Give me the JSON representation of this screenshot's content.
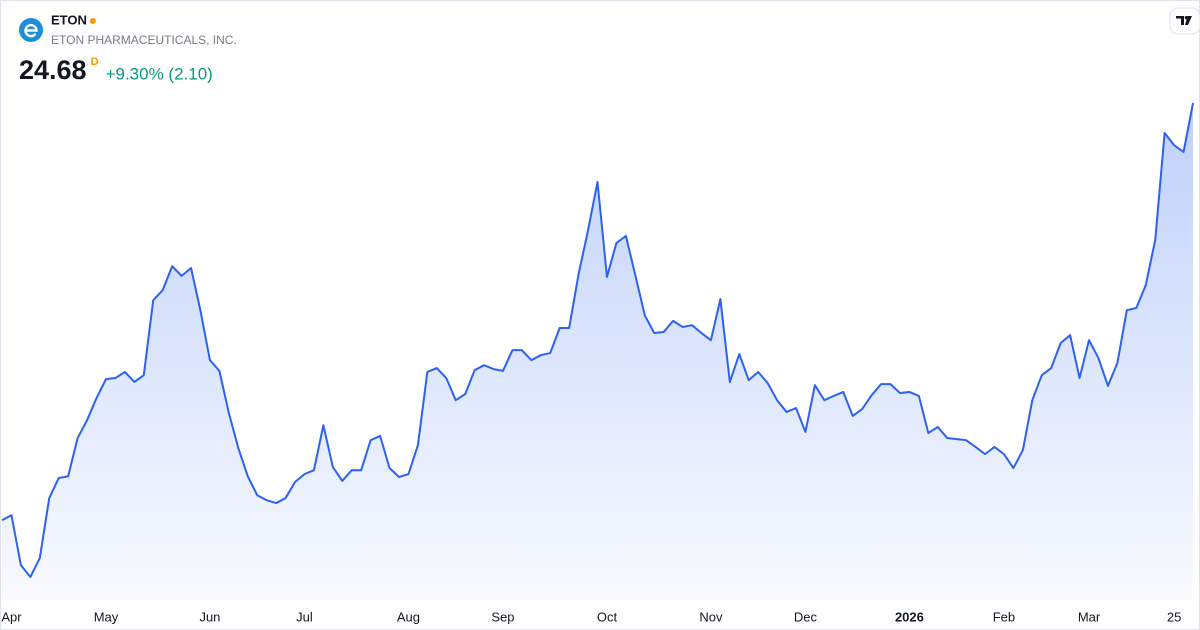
{
  "chart_data": {
    "type": "line",
    "symbol": "ETON",
    "company": "ETON PHARMACEUTICALS, INC.",
    "price": "24.68",
    "interval": "D",
    "change": "+9.30% (2.10)",
    "color": "#2c62f0",
    "categories": [
      null,
      "Apr",
      null,
      null,
      null,
      null,
      null,
      null,
      null,
      null,
      null,
      "May",
      null,
      null,
      null,
      null,
      null,
      null,
      null,
      null,
      null,
      null,
      "Jun",
      null,
      null,
      null,
      null,
      null,
      null,
      null,
      null,
      null,
      "Jul",
      null,
      null,
      null,
      null,
      null,
      null,
      null,
      null,
      null,
      null,
      "Aug",
      null,
      null,
      null,
      null,
      null,
      null,
      null,
      null,
      null,
      "Sep",
      null,
      null,
      null,
      null,
      null,
      null,
      null,
      null,
      null,
      null,
      "Oct",
      null,
      null,
      null,
      null,
      null,
      null,
      null,
      null,
      null,
      null,
      "Nov",
      null,
      null,
      null,
      null,
      null,
      null,
      null,
      null,
      null,
      "Dec",
      null,
      null,
      null,
      null,
      null,
      null,
      null,
      null,
      null,
      null,
      "2026",
      null,
      null,
      null,
      null,
      null,
      null,
      null,
      null,
      null,
      "Feb",
      null,
      null,
      null,
      null,
      null,
      null,
      null,
      null,
      "Mar",
      null,
      null,
      null,
      null,
      null,
      null,
      null,
      null,
      "25",
      null,
      null
    ],
    "values": [
      13.0,
      13.14,
      11.74,
      11.41,
      11.94,
      13.62,
      14.18,
      14.23,
      15.3,
      15.8,
      16.42,
      16.95,
      16.98,
      17.15,
      16.87,
      17.06,
      19.16,
      19.44,
      20.11,
      19.84,
      20.06,
      18.86,
      17.48,
      17.18,
      16.0,
      15.02,
      14.23,
      13.7,
      13.56,
      13.48,
      13.62,
      14.07,
      14.29,
      14.4,
      15.66,
      14.49,
      14.1,
      14.4,
      14.4,
      15.24,
      15.36,
      14.46,
      14.21,
      14.29,
      15.1,
      17.15,
      17.26,
      16.98,
      16.36,
      16.53,
      17.2,
      17.34,
      17.23,
      17.18,
      17.76,
      17.76,
      17.48,
      17.62,
      17.68,
      18.38,
      18.38,
      19.89,
      21.12,
      22.47,
      19.81,
      20.76,
      20.96,
      19.86,
      18.74,
      18.24,
      18.27,
      18.58,
      18.41,
      18.46,
      18.24,
      18.04,
      19.19,
      16.87,
      17.65,
      16.92,
      17.15,
      16.84,
      16.36,
      16.03,
      16.14,
      15.47,
      16.78,
      16.36,
      16.48,
      16.59,
      15.92,
      16.11,
      16.5,
      16.81,
      16.81,
      16.56,
      16.59,
      16.48,
      15.44,
      15.61,
      15.3,
      15.27,
      15.24,
      15.05,
      14.85,
      15.05,
      14.85,
      14.46,
      14.96,
      16.36,
      17.06,
      17.26,
      17.96,
      18.18,
      16.98,
      18.04,
      17.54,
      16.76,
      17.4,
      18.88,
      18.94,
      19.58,
      20.84,
      23.84,
      23.5,
      23.31,
      24.68
    ]
  }
}
